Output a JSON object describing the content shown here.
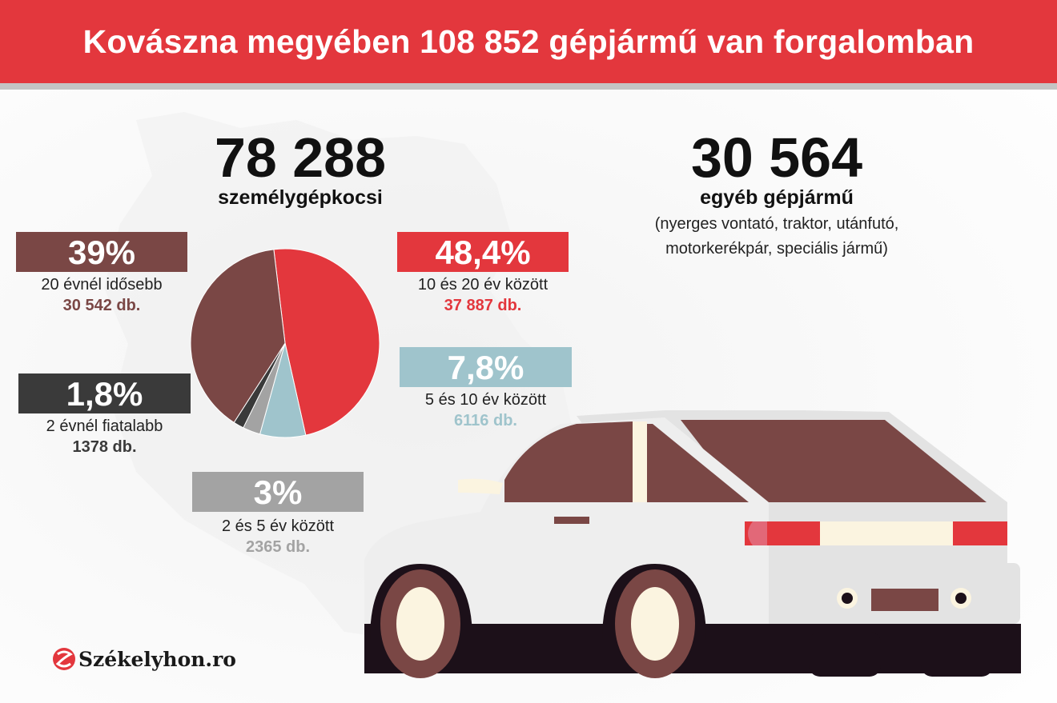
{
  "header": {
    "title": "Kovászna megyében 108 852 gépjármű van forgalomban"
  },
  "passenger": {
    "number": "78 288",
    "label": "személygépkocsi"
  },
  "other": {
    "number": "30 564",
    "label": "egyéb gépjármű",
    "note_line1": "(nyerges vontató, traktor, utánfutó,",
    "note_line2": "motorkerékpár, speciális jármű)"
  },
  "colors": {
    "accent": "#e3373d",
    "brown": "#7a4745",
    "dark": "#3a3a3a",
    "gray": "#a3a3a3",
    "lightblue": "#9fc4cc"
  },
  "chart_data": {
    "type": "pie",
    "slices": [
      {
        "percent_label": "48,4%",
        "value": 48.4,
        "label": "10 és 20 év között",
        "count": "37 887 db.",
        "color": "#e3373d"
      },
      {
        "percent_label": "7,8%",
        "value": 7.8,
        "label": "5 és 10 év között",
        "count": "6116 db.",
        "color": "#9fc4cc"
      },
      {
        "percent_label": "3%",
        "value": 3,
        "label": "2 és 5 év között",
        "count": "2365 db.",
        "color": "#a3a3a3"
      },
      {
        "percent_label": "1,8%",
        "value": 1.8,
        "label": "2 évnél fiatalabb",
        "count": "1378 db.",
        "color": "#3a3a3a"
      },
      {
        "percent_label": "39%",
        "value": 39,
        "label": "20 évnél idősebb",
        "count": "30 542 db.",
        "color": "#7a4745"
      }
    ]
  },
  "logo": {
    "text": "Székelyhon.ro"
  }
}
